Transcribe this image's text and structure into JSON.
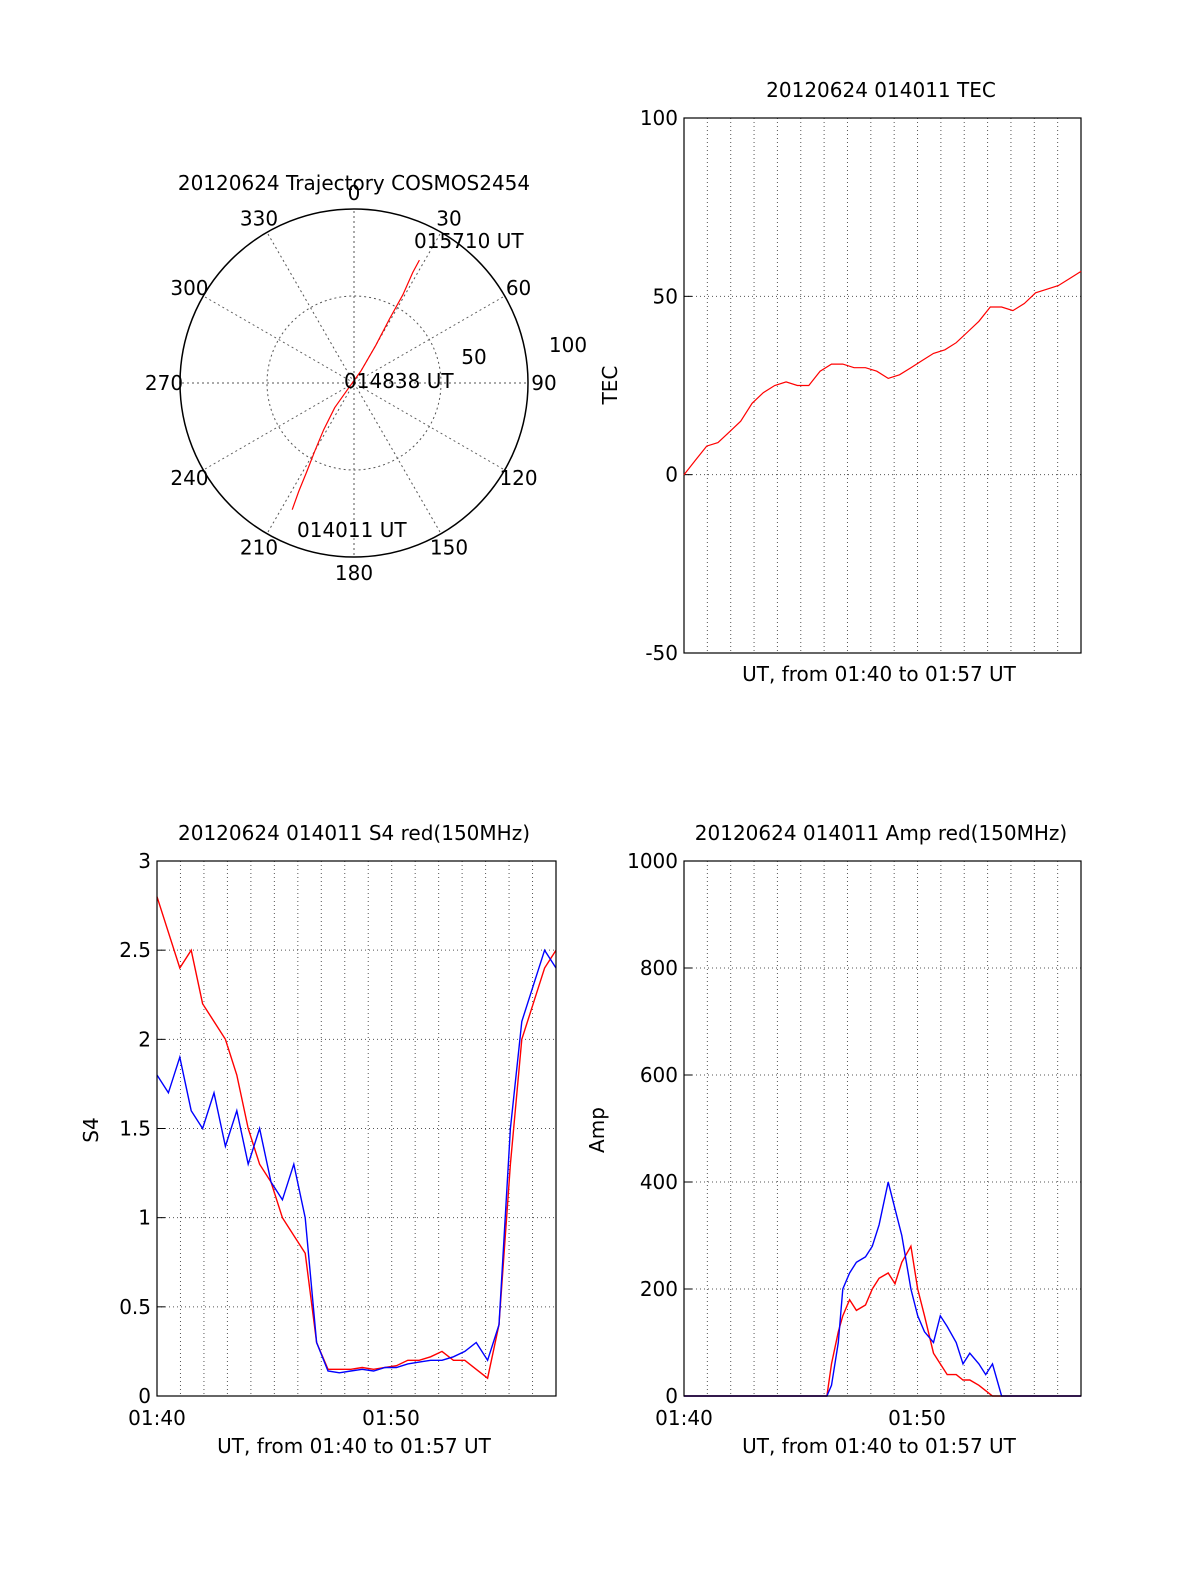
{
  "colors": {
    "red": "#ff0000",
    "blue": "#0000ff",
    "axis": "#000000",
    "grid": "#555555"
  },
  "chart_data": [
    {
      "type": "polar",
      "title": "20120624 Trajectory COSMOS2454",
      "angle_labels": [
        "0",
        "30",
        "60",
        "90",
        "120",
        "150",
        "180",
        "210",
        "240",
        "270",
        "300",
        "330"
      ],
      "radius_labels": [
        "50",
        "100"
      ],
      "rlim": [
        0,
        100
      ],
      "grid": true,
      "series": [
        {
          "color": "red",
          "points": [
            [
              206,
              81
            ],
            [
              207,
              70
            ],
            [
              208,
              58
            ],
            [
              210,
              45
            ],
            [
              213,
              32
            ],
            [
              218,
              18
            ],
            [
              225,
              5
            ],
            [
              30,
              8
            ],
            [
              30,
              25
            ],
            [
              29,
              42
            ],
            [
              29,
              58
            ],
            [
              28,
              72
            ],
            [
              28,
              80
            ]
          ]
        }
      ],
      "annotations": [
        "015710 UT",
        "014838 UT",
        "014011 UT"
      ]
    },
    {
      "type": "line",
      "title": "20120624 014011 TEC",
      "xlabel": "UT, from 01:40 to 01:57 UT",
      "ylabel": "TEC",
      "xlim": [
        0,
        17.5
      ],
      "ylim": [
        -50,
        100
      ],
      "yticks": [
        "100",
        "50",
        "0",
        "-50"
      ],
      "grid": true,
      "series": [
        {
          "color": "red",
          "x": [
            0,
            0.5,
            1,
            1.5,
            2,
            2.5,
            3,
            3.5,
            4,
            4.5,
            5,
            5.5,
            6,
            6.5,
            7,
            7.5,
            8,
            8.5,
            9,
            9.5,
            10,
            10.5,
            11,
            11.5,
            12,
            12.5,
            13,
            13.5,
            14,
            14.5,
            15,
            15.5,
            16,
            16.5,
            17,
            17.5
          ],
          "y": [
            0,
            4,
            8,
            9,
            12,
            15,
            20,
            23,
            25,
            26,
            25,
            25,
            29,
            31,
            31,
            30,
            30,
            29,
            27,
            28,
            30,
            32,
            34,
            35,
            37,
            40,
            43,
            47,
            47,
            46,
            48,
            51,
            52,
            53,
            55,
            57
          ]
        }
      ]
    },
    {
      "type": "line",
      "title": "20120624 014011 S4 red(150MHz)",
      "xlabel": "UT, from 01:40 to 01:57 UT",
      "ylabel": "S4",
      "xlim": [
        0,
        17.5
      ],
      "ylim": [
        0,
        3
      ],
      "xticks": [
        "01:40",
        "01:50"
      ],
      "yticks": [
        "3",
        "2.5",
        "2",
        "1.5",
        "1",
        "0.5",
        "0"
      ],
      "grid": true,
      "series": [
        {
          "color": "red",
          "x": [
            0,
            0.5,
            1,
            1.5,
            2,
            2.5,
            3,
            3.5,
            4,
            4.5,
            5,
            5.5,
            6,
            6.5,
            7,
            7.5,
            8,
            8.5,
            9,
            9.5,
            10,
            10.5,
            11,
            11.5,
            12,
            12.5,
            13,
            13.5,
            14,
            14.5,
            15,
            15.5,
            16,
            16.5,
            17,
            17.5
          ],
          "y": [
            2.8,
            2.6,
            2.4,
            2.5,
            2.2,
            2.1,
            2.0,
            1.8,
            1.5,
            1.3,
            1.2,
            1.0,
            0.9,
            0.8,
            0.3,
            0.15,
            0.15,
            0.15,
            0.16,
            0.15,
            0.16,
            0.17,
            0.2,
            0.2,
            0.22,
            0.25,
            0.2,
            0.2,
            0.15,
            0.1,
            0.4,
            1.3,
            2.0,
            2.2,
            2.4,
            2.5
          ]
        },
        {
          "color": "blue",
          "x": [
            0,
            0.5,
            1,
            1.5,
            2,
            2.5,
            3,
            3.5,
            4,
            4.5,
            5,
            5.5,
            6,
            6.5,
            7,
            7.5,
            8,
            8.5,
            9,
            9.5,
            10,
            10.5,
            11,
            11.5,
            12,
            12.5,
            13,
            13.5,
            14,
            14.5,
            15,
            15.5,
            16,
            16.5,
            17,
            17.5
          ],
          "y": [
            1.8,
            1.7,
            1.9,
            1.6,
            1.5,
            1.7,
            1.4,
            1.6,
            1.3,
            1.5,
            1.2,
            1.1,
            1.3,
            1.0,
            0.3,
            0.14,
            0.13,
            0.14,
            0.15,
            0.14,
            0.16,
            0.16,
            0.18,
            0.19,
            0.2,
            0.2,
            0.22,
            0.25,
            0.3,
            0.2,
            0.4,
            1.5,
            2.1,
            2.3,
            2.5,
            2.4
          ]
        }
      ]
    },
    {
      "type": "line",
      "title": "20120624 014011 Amp red(150MHz)",
      "xlabel": "UT, from 01:40 to 01:57 UT",
      "ylabel": "Amp",
      "xlim": [
        0,
        17.5
      ],
      "ylim": [
        0,
        1000
      ],
      "xticks": [
        "01:40",
        "01:50"
      ],
      "yticks": [
        "1000",
        "800",
        "600",
        "400",
        "200",
        "0"
      ],
      "grid": true,
      "series": [
        {
          "color": "red",
          "x": [
            0,
            1,
            2,
            3,
            4,
            5,
            6,
            6.3,
            6.5,
            6.8,
            7,
            7.3,
            7.6,
            8,
            8.3,
            8.6,
            9,
            9.3,
            9.6,
            10,
            10.3,
            10.6,
            11,
            11.3,
            11.6,
            12,
            12.3,
            12.6,
            13,
            13.3,
            13.6,
            14,
            15,
            16,
            17,
            17.5
          ],
          "y": [
            0,
            0,
            0,
            0,
            0,
            0,
            0,
            0,
            60,
            120,
            150,
            180,
            160,
            170,
            200,
            220,
            230,
            210,
            250,
            280,
            200,
            150,
            80,
            60,
            40,
            40,
            30,
            30,
            20,
            10,
            0,
            0,
            0,
            0,
            0,
            0
          ]
        },
        {
          "color": "blue",
          "x": [
            0,
            1,
            2,
            3,
            4,
            5,
            6,
            6.3,
            6.5,
            6.8,
            7,
            7.3,
            7.6,
            8,
            8.3,
            8.6,
            9,
            9.3,
            9.6,
            10,
            10.3,
            10.6,
            11,
            11.3,
            11.6,
            12,
            12.3,
            12.6,
            13,
            13.3,
            13.6,
            14,
            15,
            16,
            17,
            17.5
          ],
          "y": [
            0,
            0,
            0,
            0,
            0,
            0,
            0,
            0,
            20,
            100,
            200,
            230,
            250,
            260,
            280,
            320,
            400,
            350,
            300,
            200,
            150,
            120,
            100,
            150,
            130,
            100,
            60,
            80,
            60,
            40,
            60,
            0,
            0,
            0,
            0,
            0
          ]
        }
      ]
    }
  ]
}
